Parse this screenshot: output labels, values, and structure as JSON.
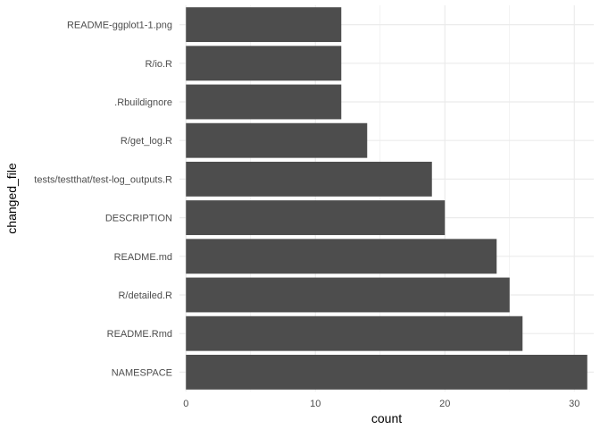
{
  "chart_data": {
    "type": "bar",
    "orientation": "horizontal",
    "categories": [
      "README-ggplot1-1.png",
      "R/io.R",
      ".Rbuildignore",
      "R/get_log.R",
      "tests/testthat/test-log_outputs.R",
      "DESCRIPTION",
      "README.md",
      "R/detailed.R",
      "README.Rmd",
      "NAMESPACE"
    ],
    "values": [
      12,
      12,
      12,
      14,
      19,
      20,
      24,
      25,
      26,
      31
    ],
    "xlabel": "count",
    "ylabel": "changed_file",
    "xlim": [
      -0.5,
      31.5
    ],
    "xticks": [
      0,
      10,
      20,
      30
    ],
    "grid": true,
    "bar_color": "#4d4d4d",
    "grid_color": "#ebebeb"
  }
}
